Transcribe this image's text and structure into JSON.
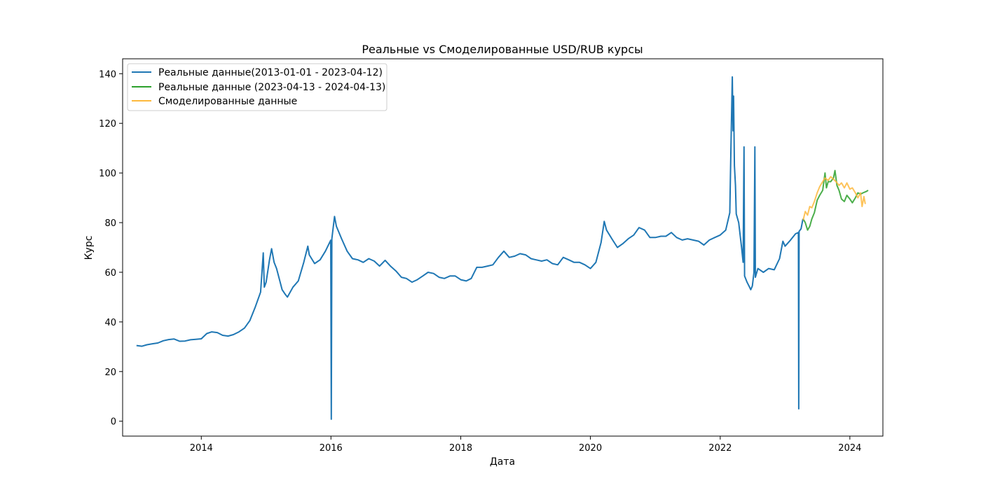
{
  "chart_data": {
    "type": "line",
    "title": "Реальные vs Смоделированные USD/RUB курсы",
    "xlabel": "Дата",
    "ylabel": "Курс",
    "xlim": [
      "2012-10-15",
      "2024-07-05"
    ],
    "ylim": [
      -6,
      146
    ],
    "x_ticks": [
      "2014",
      "2016",
      "2018",
      "2020",
      "2022",
      "2024"
    ],
    "y_ticks": [
      "0",
      "20",
      "40",
      "60",
      "80",
      "100",
      "120",
      "140"
    ],
    "grid": false,
    "legend_position": "upper-left",
    "series": [
      {
        "name": "Реальные данные(2013-01-01 - 2023-04-12)",
        "color": "#1f77b4",
        "points": [
          [
            "2013-01-01",
            30.5
          ],
          [
            "2013-02-01",
            30.2
          ],
          [
            "2013-03-01",
            30.8
          ],
          [
            "2013-04-01",
            31.2
          ],
          [
            "2013-05-01",
            31.5
          ],
          [
            "2013-06-01",
            32.4
          ],
          [
            "2013-07-01",
            32.9
          ],
          [
            "2013-08-01",
            33.1
          ],
          [
            "2013-09-01",
            32.2
          ],
          [
            "2013-10-01",
            32.3
          ],
          [
            "2013-11-01",
            32.8
          ],
          [
            "2013-12-01",
            33.0
          ],
          [
            "2014-01-01",
            33.2
          ],
          [
            "2014-02-01",
            35.3
          ],
          [
            "2014-03-01",
            36.0
          ],
          [
            "2014-04-01",
            35.7
          ],
          [
            "2014-05-01",
            34.6
          ],
          [
            "2014-06-01",
            34.3
          ],
          [
            "2014-07-01",
            34.9
          ],
          [
            "2014-08-01",
            36.0
          ],
          [
            "2014-09-01",
            37.5
          ],
          [
            "2014-10-01",
            40.5
          ],
          [
            "2014-11-01",
            46.0
          ],
          [
            "2014-12-01",
            52.0
          ],
          [
            "2014-12-16",
            67.8
          ],
          [
            "2014-12-22",
            54.0
          ],
          [
            "2015-01-01",
            56.0
          ],
          [
            "2015-01-20",
            65.0
          ],
          [
            "2015-02-01",
            69.5
          ],
          [
            "2015-02-15",
            64.0
          ],
          [
            "2015-03-01",
            61.5
          ],
          [
            "2015-04-01",
            53.0
          ],
          [
            "2015-04-20",
            51.0
          ],
          [
            "2015-05-01",
            50.0
          ],
          [
            "2015-06-01",
            54.0
          ],
          [
            "2015-07-01",
            56.5
          ],
          [
            "2015-08-01",
            64.0
          ],
          [
            "2015-08-24",
            70.5
          ],
          [
            "2015-09-01",
            67.0
          ],
          [
            "2015-10-01",
            63.5
          ],
          [
            "2015-11-01",
            65.0
          ],
          [
            "2015-12-01",
            68.5
          ],
          [
            "2015-12-31",
            72.9
          ],
          [
            "2016-01-03",
            0.8
          ],
          [
            "2016-01-06",
            73.5
          ],
          [
            "2016-01-21",
            82.5
          ],
          [
            "2016-02-01",
            78.5
          ],
          [
            "2016-03-01",
            73.5
          ],
          [
            "2016-04-01",
            68.5
          ],
          [
            "2016-05-01",
            65.5
          ],
          [
            "2016-06-01",
            65.0
          ],
          [
            "2016-07-01",
            64.0
          ],
          [
            "2016-08-01",
            65.5
          ],
          [
            "2016-09-01",
            64.5
          ],
          [
            "2016-10-01",
            62.5
          ],
          [
            "2016-11-01",
            64.8
          ],
          [
            "2016-12-01",
            62.5
          ],
          [
            "2017-01-01",
            60.5
          ],
          [
            "2017-02-01",
            58.0
          ],
          [
            "2017-03-01",
            57.5
          ],
          [
            "2017-04-01",
            56.0
          ],
          [
            "2017-05-01",
            57.0
          ],
          [
            "2017-06-01",
            58.5
          ],
          [
            "2017-07-01",
            60.0
          ],
          [
            "2017-08-01",
            59.5
          ],
          [
            "2017-09-01",
            58.0
          ],
          [
            "2017-10-01",
            57.5
          ],
          [
            "2017-11-01",
            58.5
          ],
          [
            "2017-12-01",
            58.5
          ],
          [
            "2018-01-01",
            57.0
          ],
          [
            "2018-02-01",
            56.5
          ],
          [
            "2018-03-01",
            57.5
          ],
          [
            "2018-04-01",
            62.0
          ],
          [
            "2018-05-01",
            62.0
          ],
          [
            "2018-06-01",
            62.5
          ],
          [
            "2018-07-01",
            63.0
          ],
          [
            "2018-08-01",
            66.0
          ],
          [
            "2018-09-01",
            68.5
          ],
          [
            "2018-10-01",
            66.0
          ],
          [
            "2018-11-01",
            66.5
          ],
          [
            "2018-12-01",
            67.5
          ],
          [
            "2019-01-01",
            67.0
          ],
          [
            "2019-02-01",
            65.5
          ],
          [
            "2019-03-01",
            65.0
          ],
          [
            "2019-04-01",
            64.5
          ],
          [
            "2019-05-01",
            65.0
          ],
          [
            "2019-06-01",
            63.5
          ],
          [
            "2019-07-01",
            63.0
          ],
          [
            "2019-08-01",
            66.0
          ],
          [
            "2019-09-01",
            65.0
          ],
          [
            "2019-10-01",
            64.0
          ],
          [
            "2019-11-01",
            64.0
          ],
          [
            "2019-12-01",
            63.0
          ],
          [
            "2020-01-01",
            61.5
          ],
          [
            "2020-02-01",
            64.0
          ],
          [
            "2020-03-01",
            72.0
          ],
          [
            "2020-03-19",
            80.5
          ],
          [
            "2020-04-01",
            77.0
          ],
          [
            "2020-05-01",
            73.5
          ],
          [
            "2020-06-01",
            70.0
          ],
          [
            "2020-07-01",
            71.5
          ],
          [
            "2020-08-01",
            73.5
          ],
          [
            "2020-09-01",
            75.0
          ],
          [
            "2020-10-01",
            78.0
          ],
          [
            "2020-11-01",
            77.0
          ],
          [
            "2020-12-01",
            74.0
          ],
          [
            "2021-01-01",
            74.0
          ],
          [
            "2021-02-01",
            74.5
          ],
          [
            "2021-03-01",
            74.5
          ],
          [
            "2021-04-01",
            76.0
          ],
          [
            "2021-05-01",
            74.0
          ],
          [
            "2021-06-01",
            73.0
          ],
          [
            "2021-07-01",
            73.5
          ],
          [
            "2021-08-01",
            73.0
          ],
          [
            "2021-09-01",
            72.5
          ],
          [
            "2021-10-01",
            71.0
          ],
          [
            "2021-11-01",
            73.0
          ],
          [
            "2021-12-01",
            74.0
          ],
          [
            "2022-01-01",
            75.0
          ],
          [
            "2022-02-01",
            77.0
          ],
          [
            "2022-02-24",
            84.0
          ],
          [
            "2022-03-01",
            105.0
          ],
          [
            "2022-03-05",
            120.0
          ],
          [
            "2022-03-10",
            138.7
          ],
          [
            "2022-03-14",
            117.0
          ],
          [
            "2022-03-17",
            131.0
          ],
          [
            "2022-03-22",
            103.0
          ],
          [
            "2022-03-28",
            95.0
          ],
          [
            "2022-04-01",
            83.5
          ],
          [
            "2022-04-15",
            80.0
          ],
          [
            "2022-05-01",
            70.0
          ],
          [
            "2022-05-10",
            64.0
          ],
          [
            "2022-05-15",
            110.5
          ],
          [
            "2022-05-18",
            58.5
          ],
          [
            "2022-06-01",
            56.0
          ],
          [
            "2022-06-15",
            54.0
          ],
          [
            "2022-06-22",
            53.0
          ],
          [
            "2022-07-01",
            54.5
          ],
          [
            "2022-07-10",
            60.0
          ],
          [
            "2022-07-15",
            110.5
          ],
          [
            "2022-07-18",
            58.0
          ],
          [
            "2022-08-01",
            61.5
          ],
          [
            "2022-09-01",
            60.0
          ],
          [
            "2022-10-01",
            61.5
          ],
          [
            "2022-11-01",
            61.0
          ],
          [
            "2022-12-01",
            65.5
          ],
          [
            "2022-12-20",
            72.5
          ],
          [
            "2023-01-01",
            70.5
          ],
          [
            "2023-02-01",
            73.0
          ],
          [
            "2023-03-01",
            75.5
          ],
          [
            "2023-03-17",
            76.0
          ],
          [
            "2023-03-19",
            5.0
          ],
          [
            "2023-03-21",
            76.5
          ],
          [
            "2023-04-01",
            77.5
          ],
          [
            "2023-04-12",
            81.5
          ]
        ]
      },
      {
        "name": "Реальные данные (2023-04-13 - 2024-04-13)",
        "color": "#2ca02c",
        "points": [
          [
            "2023-04-13",
            81.5
          ],
          [
            "2023-04-25",
            80.0
          ],
          [
            "2023-05-08",
            77.0
          ],
          [
            "2023-05-20",
            78.5
          ],
          [
            "2023-06-01",
            81.5
          ],
          [
            "2023-06-15",
            84.0
          ],
          [
            "2023-07-01",
            89.0
          ],
          [
            "2023-07-15",
            91.0
          ],
          [
            "2023-08-01",
            93.0
          ],
          [
            "2023-08-14",
            100.0
          ],
          [
            "2023-08-22",
            94.0
          ],
          [
            "2023-09-01",
            96.5
          ],
          [
            "2023-09-15",
            96.5
          ],
          [
            "2023-10-01",
            98.0
          ],
          [
            "2023-10-09",
            101.0
          ],
          [
            "2023-10-20",
            95.0
          ],
          [
            "2023-11-01",
            93.0
          ],
          [
            "2023-11-15",
            89.5
          ],
          [
            "2023-12-01",
            88.5
          ],
          [
            "2023-12-15",
            91.0
          ],
          [
            "2024-01-01",
            89.5
          ],
          [
            "2024-01-15",
            88.0
          ],
          [
            "2024-02-01",
            90.0
          ],
          [
            "2024-02-15",
            92.0
          ],
          [
            "2024-03-01",
            91.5
          ],
          [
            "2024-03-15",
            92.0
          ],
          [
            "2024-04-01",
            92.5
          ],
          [
            "2024-04-13",
            93.0
          ]
        ]
      },
      {
        "name": "Смоделированные данные",
        "color": "#fdb93d",
        "points": [
          [
            "2023-04-13",
            81.0
          ],
          [
            "2023-04-25",
            84.5
          ],
          [
            "2023-05-08",
            83.0
          ],
          [
            "2023-05-20",
            86.5
          ],
          [
            "2023-06-01",
            86.0
          ],
          [
            "2023-06-15",
            88.5
          ],
          [
            "2023-07-01",
            92.0
          ],
          [
            "2023-07-15",
            94.5
          ],
          [
            "2023-08-01",
            96.5
          ],
          [
            "2023-08-14",
            98.0
          ],
          [
            "2023-09-01",
            97.0
          ],
          [
            "2023-09-15",
            98.5
          ],
          [
            "2023-10-01",
            97.5
          ],
          [
            "2023-10-15",
            96.5
          ],
          [
            "2023-11-01",
            95.0
          ],
          [
            "2023-11-15",
            96.0
          ],
          [
            "2023-12-01",
            94.0
          ],
          [
            "2023-12-15",
            96.0
          ],
          [
            "2024-01-01",
            93.5
          ],
          [
            "2024-01-15",
            94.0
          ],
          [
            "2024-02-01",
            92.0
          ],
          [
            "2024-02-15",
            90.0
          ],
          [
            "2024-03-01",
            92.0
          ],
          [
            "2024-03-10",
            86.5
          ],
          [
            "2024-03-20",
            90.5
          ],
          [
            "2024-03-28",
            87.5
          ]
        ]
      }
    ]
  }
}
